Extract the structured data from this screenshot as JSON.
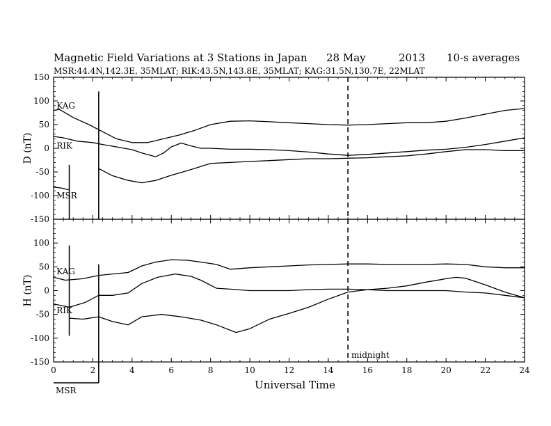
{
  "title": {
    "main": "Magnetic Field Variations at 3 Stations in Japan",
    "date": "28 May",
    "year": "2013",
    "avg": "10-s averages"
  },
  "subtitle": "MSR:44.4N,142.3E, 35MLAT;  RIK:43.5N,143.8E, 35MLAT;  KAG:31.5N,130.7E, 22MLAT",
  "chart_data": {
    "type": "line",
    "x_label": "Universal Time",
    "x_range": [
      0,
      24
    ],
    "x_ticks": [
      0,
      2,
      4,
      6,
      8,
      10,
      12,
      14,
      16,
      18,
      20,
      22,
      24
    ],
    "midnight_x": 15,
    "midnight_label": "midnight",
    "panels": [
      {
        "ylabel": "D (nT)",
        "ylim": [
          -150,
          150
        ],
        "yticks": [
          150,
          100,
          50,
          0,
          -50,
          -100,
          -150
        ],
        "series": [
          {
            "name": "KAG",
            "x": [
              0,
              0.3,
              1,
              1.8,
              2.5,
              3.2,
              4,
              4.8,
              5.6,
              6.4,
              7.2,
              8,
              9,
              10,
              11,
              12,
              13,
              14,
              15,
              16,
              17,
              18,
              19,
              20,
              21,
              22,
              23,
              24
            ],
            "y": [
              80,
              82,
              65,
              50,
              35,
              20,
              12,
              12,
              20,
              28,
              38,
              50,
              57,
              58,
              56,
              54,
              52,
              50,
              49,
              50,
              52,
              54,
              54,
              57,
              64,
              72,
              80,
              84
            ]
          },
          {
            "name": "RIK",
            "x": [
              0,
              0.5,
              1.2,
              2,
              2.5,
              3.2,
              4,
              4.5,
              5.2,
              5.6,
              6,
              6.5,
              7,
              7.5,
              8,
              9,
              10,
              11,
              12,
              13,
              14,
              15,
              16,
              17,
              18,
              19,
              20,
              21,
              22,
              23,
              24
            ],
            "y": [
              25,
              22,
              15,
              12,
              8,
              3,
              -3,
              -10,
              -18,
              -10,
              3,
              11,
              5,
              0,
              0,
              -2,
              -2,
              -3,
              -5,
              -8,
              -12,
              -15,
              -13,
              -10,
              -7,
              -4,
              -2,
              2,
              8,
              15,
              22
            ]
          },
          {
            "name": "",
            "x": [
              2.3,
              3,
              3.8,
              4.5,
              5.2,
              6,
              7,
              8,
              9,
              10,
              11,
              12,
              13,
              14,
              15,
              16,
              17,
              18,
              19,
              20,
              21,
              22,
              23,
              24
            ],
            "y": [
              -43,
              -58,
              -68,
              -73,
              -68,
              -57,
              -45,
              -32,
              -30,
              -28,
              -26,
              -24,
              -22,
              -22,
              -21,
              -20,
              -18,
              -16,
              -12,
              -7,
              -3,
              -3,
              -5,
              -5
            ]
          },
          {
            "name": "MSR",
            "x": [
              0,
              0.4,
              0.8
            ],
            "y": [
              -82,
              -84,
              -88
            ]
          }
        ],
        "labels": [
          {
            "text": "KAG",
            "x": 0.15,
            "y": 90
          },
          {
            "text": "RIK",
            "x": 0.15,
            "y": 5
          },
          {
            "text": "MSR",
            "x": 0.15,
            "y": -100
          }
        ],
        "spikes": [
          {
            "x": 0.8,
            "y1": -35,
            "y2": -150
          },
          {
            "x": 2.3,
            "y1": 120,
            "y2": -150
          }
        ]
      },
      {
        "ylabel": "H (nT)",
        "ylim": [
          -150,
          150
        ],
        "yticks": [
          100,
          50,
          0,
          -50,
          -100,
          -150
        ],
        "series": [
          {
            "name": "KAG",
            "x": [
              0,
              0.6,
              1.5,
              2.3,
              3,
              3.8,
              4.5,
              5.2,
              6,
              6.8,
              7.5,
              8.3,
              9,
              10,
              11,
              12,
              13,
              14,
              15,
              16,
              17,
              18,
              19,
              20,
              21,
              22,
              23,
              24
            ],
            "y": [
              28,
              22,
              25,
              32,
              35,
              38,
              52,
              60,
              65,
              64,
              60,
              55,
              45,
              48,
              50,
              52,
              54,
              55,
              56,
              56,
              55,
              55,
              55,
              56,
              55,
              50,
              48,
              48
            ]
          },
          {
            "name": "RIK",
            "x": [
              0,
              0.8,
              1.6,
              2.3,
              3,
              3.8,
              4.5,
              5.3,
              6.2,
              7,
              7.5,
              8.3,
              9,
              10,
              11,
              12,
              13,
              14,
              15,
              16,
              17,
              18,
              19,
              20,
              21,
              22,
              23,
              24
            ],
            "y": [
              -28,
              -35,
              -25,
              -10,
              -10,
              -5,
              15,
              28,
              35,
              30,
              22,
              5,
              3,
              0,
              0,
              0,
              2,
              3,
              3,
              2,
              0,
              0,
              0,
              0,
              -3,
              -5,
              -10,
              -15
            ]
          },
          {
            "name": "",
            "x": [
              0.8,
              1.5,
              2.3,
              3,
              3.8,
              4.5,
              5.5,
              6.5,
              7.5,
              8.3,
              9.3,
              10,
              11,
              12,
              13,
              14,
              15,
              16,
              17,
              18,
              19,
              20,
              20.5,
              21,
              22,
              23,
              24
            ],
            "y": [
              -58,
              -60,
              -55,
              -65,
              -72,
              -55,
              -50,
              -55,
              -62,
              -72,
              -88,
              -80,
              -60,
              -48,
              -35,
              -18,
              -3,
              2,
              5,
              10,
              18,
              25,
              28,
              26,
              12,
              -3,
              -15
            ]
          }
        ],
        "labels": [
          {
            "text": "KAG",
            "x": 0.15,
            "y": 40
          },
          {
            "text": "RIK",
            "x": 0.15,
            "y": -42
          }
        ],
        "spikes": [
          {
            "x": 0.8,
            "y1": 95,
            "y2": -95
          },
          {
            "x": 2.3,
            "y1": 55,
            "y2": -150
          }
        ]
      }
    ],
    "msr_bottom_label": "MSR"
  }
}
